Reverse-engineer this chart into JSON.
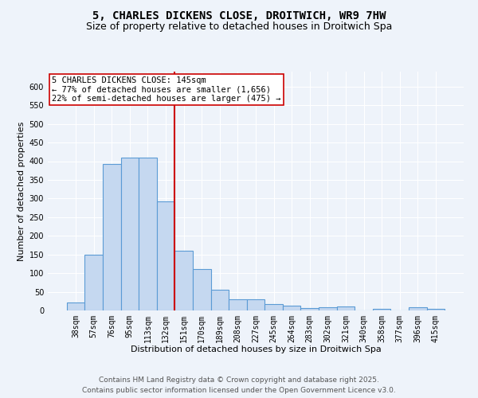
{
  "title": "5, CHARLES DICKENS CLOSE, DROITWICH, WR9 7HW",
  "subtitle": "Size of property relative to detached houses in Droitwich Spa",
  "xlabel": "Distribution of detached houses by size in Droitwich Spa",
  "ylabel": "Number of detached properties",
  "bar_labels": [
    "38sqm",
    "57sqm",
    "76sqm",
    "95sqm",
    "113sqm",
    "132sqm",
    "151sqm",
    "170sqm",
    "189sqm",
    "208sqm",
    "227sqm",
    "245sqm",
    "264sqm",
    "283sqm",
    "302sqm",
    "321sqm",
    "340sqm",
    "358sqm",
    "377sqm",
    "396sqm",
    "415sqm"
  ],
  "bar_values": [
    22,
    150,
    393,
    410,
    410,
    293,
    160,
    110,
    55,
    30,
    30,
    18,
    12,
    6,
    8,
    10,
    1,
    5,
    1,
    8,
    4
  ],
  "bar_color": "#c5d8f0",
  "bar_edge_color": "#5b9bd5",
  "vline_position": 5.5,
  "vline_color": "#cc0000",
  "annotation_title": "5 CHARLES DICKENS CLOSE: 145sqm",
  "annotation_line1": "← 77% of detached houses are smaller (1,656)",
  "annotation_line2": "22% of semi-detached houses are larger (475) →",
  "ylim": [
    0,
    640
  ],
  "yticks": [
    0,
    50,
    100,
    150,
    200,
    250,
    300,
    350,
    400,
    450,
    500,
    550,
    600
  ],
  "footer_line1": "Contains HM Land Registry data © Crown copyright and database right 2025.",
  "footer_line2": "Contains public sector information licensed under the Open Government Licence v3.0.",
  "bg_color": "#eef3fa",
  "plot_bg_color": "#eef3fa",
  "grid_color": "#ffffff",
  "title_fontsize": 10,
  "subtitle_fontsize": 9,
  "axis_label_fontsize": 8,
  "tick_fontsize": 7,
  "footer_fontsize": 6.5,
  "annotation_fontsize": 7.5
}
